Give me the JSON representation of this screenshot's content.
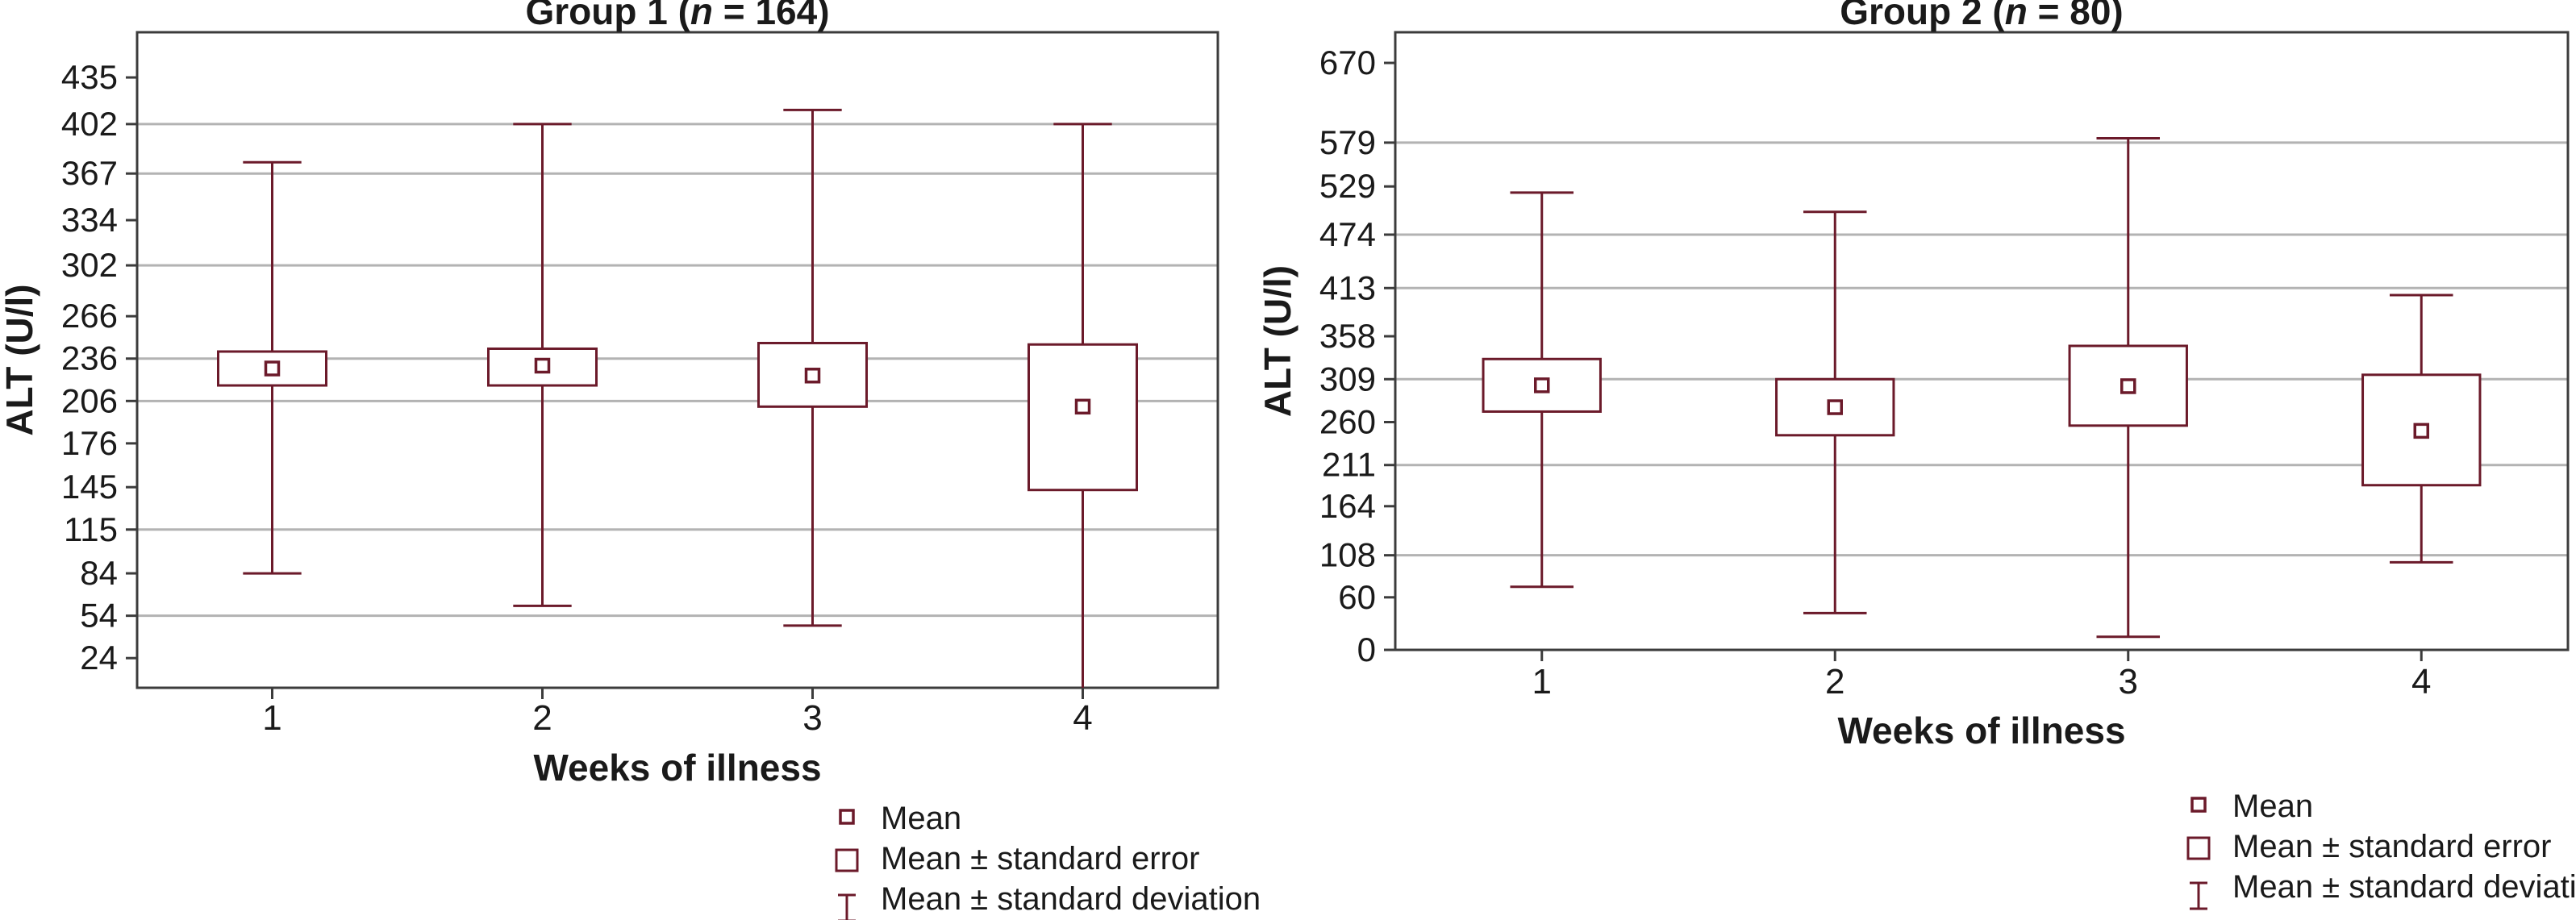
{
  "chart_data": [
    {
      "type": "box",
      "title": "Group 1 (n = 164)",
      "title_parts": {
        "prefix": "Group 1 (",
        "n": "n",
        "suffix": " = 164)"
      },
      "xlabel": "Weeks of illness",
      "ylabel": "ALT (U/l)",
      "ylim": [
        3,
        467
      ],
      "yticks": [
        24,
        54,
        84,
        115,
        145,
        176,
        206,
        236,
        266,
        302,
        334,
        367,
        402,
        435
      ],
      "gridlines": [
        54,
        115,
        206,
        236,
        302,
        367,
        402
      ],
      "grid": true,
      "categories": [
        "1",
        "2",
        "3",
        "4"
      ],
      "mean": [
        229,
        231,
        224,
        202
      ],
      "se_low": [
        217,
        217,
        202,
        143
      ],
      "se_high": [
        241,
        243,
        247,
        246
      ],
      "sd_low": [
        84,
        61,
        47,
        3
      ],
      "sd_high": [
        375,
        402,
        412,
        402
      ],
      "legend_position": "bottom-right",
      "legend": [
        "Mean",
        "Mean ± standard error",
        "Mean ± standard deviation"
      ]
    },
    {
      "type": "box",
      "title": "Group 2 (n = 80)",
      "title_parts": {
        "prefix": "Group 2 (",
        "n": "n",
        "suffix": " = 80)"
      },
      "xlabel": "Weeks of illness",
      "ylabel": "ALT (U/l)",
      "ylim": [
        0,
        705
      ],
      "yticks": [
        0,
        60,
        108,
        164,
        211,
        260,
        309,
        358,
        413,
        474,
        529,
        579,
        670
      ],
      "gridlines": [
        108,
        211,
        309,
        413,
        474,
        579
      ],
      "grid": true,
      "categories": [
        "1",
        "2",
        "3",
        "4"
      ],
      "mean": [
        302,
        277,
        301,
        250
      ],
      "se_low": [
        272,
        245,
        256,
        188
      ],
      "se_high": [
        332,
        309,
        347,
        314
      ],
      "sd_low": [
        72,
        42,
        15,
        100
      ],
      "sd_high": [
        522,
        500,
        584,
        405
      ],
      "legend_position": "bottom-right",
      "legend": [
        "Mean",
        "Mean ± standard error",
        "Mean ± standard deviation"
      ]
    }
  ],
  "colors": {
    "series": "#6b1a2a",
    "grid": "#b3b3b3",
    "frame": "#3c3c3c",
    "text": "#1a1a1a"
  }
}
